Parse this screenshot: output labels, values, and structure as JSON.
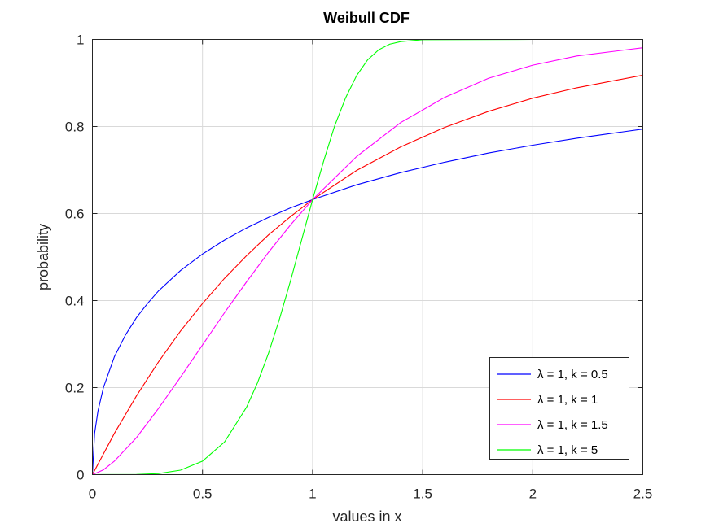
{
  "chart_data": {
    "type": "line",
    "title": "Weibull CDF",
    "xlabel": "values in x",
    "ylabel": "probability",
    "xlim": [
      0,
      2.5
    ],
    "ylim": [
      0,
      1
    ],
    "xticks": [
      0,
      0.5,
      1,
      1.5,
      2,
      2.5
    ],
    "xtick_labels": [
      "0",
      "0.5",
      "1",
      "1.5",
      "2",
      "2.5"
    ],
    "yticks": [
      0,
      0.2,
      0.4,
      0.6,
      0.8,
      1
    ],
    "ytick_labels": [
      "0",
      "0.2",
      "0.4",
      "0.6",
      "0.8",
      "1"
    ],
    "grid": true,
    "legend_position": "bottom-right",
    "series": [
      {
        "name": "λ = 1, k = 0.5",
        "color": "#0000ff",
        "x": [
          0,
          0.01,
          0.025,
          0.05,
          0.1,
          0.15,
          0.2,
          0.25,
          0.3,
          0.4,
          0.5,
          0.6,
          0.7,
          0.8,
          0.9,
          1.0,
          1.2,
          1.4,
          1.6,
          1.8,
          2.0,
          2.2,
          2.5
        ],
        "y": [
          0,
          0.095,
          0.146,
          0.2,
          0.271,
          0.321,
          0.361,
          0.393,
          0.422,
          0.469,
          0.507,
          0.539,
          0.567,
          0.591,
          0.613,
          0.632,
          0.666,
          0.694,
          0.718,
          0.739,
          0.757,
          0.773,
          0.794
        ]
      },
      {
        "name": "λ = 1, k = 1",
        "color": "#ff0000",
        "x": [
          0,
          0.1,
          0.2,
          0.3,
          0.4,
          0.5,
          0.6,
          0.7,
          0.8,
          0.9,
          1.0,
          1.2,
          1.4,
          1.6,
          1.8,
          2.0,
          2.2,
          2.5
        ],
        "y": [
          0,
          0.095,
          0.181,
          0.259,
          0.33,
          0.393,
          0.451,
          0.503,
          0.551,
          0.593,
          0.632,
          0.699,
          0.753,
          0.798,
          0.835,
          0.865,
          0.889,
          0.918
        ]
      },
      {
        "name": "λ = 1, k = 1.5",
        "color": "#ff00ff",
        "x": [
          0,
          0.05,
          0.1,
          0.2,
          0.3,
          0.4,
          0.5,
          0.6,
          0.7,
          0.8,
          0.9,
          1.0,
          1.2,
          1.4,
          1.6,
          1.8,
          2.0,
          2.2,
          2.5
        ],
        "y": [
          0,
          0.011,
          0.031,
          0.085,
          0.152,
          0.224,
          0.298,
          0.372,
          0.443,
          0.511,
          0.574,
          0.632,
          0.731,
          0.809,
          0.867,
          0.911,
          0.941,
          0.962,
          0.981
        ]
      },
      {
        "name": "λ = 1, k = 5",
        "color": "#00ff00",
        "x": [
          0,
          0.2,
          0.3,
          0.4,
          0.5,
          0.6,
          0.7,
          0.75,
          0.8,
          0.85,
          0.9,
          0.95,
          1.0,
          1.05,
          1.1,
          1.15,
          1.2,
          1.25,
          1.3,
          1.35,
          1.4,
          1.5,
          2.0,
          2.5
        ],
        "y": [
          0,
          0.0003,
          0.0024,
          0.0102,
          0.031,
          0.075,
          0.155,
          0.211,
          0.279,
          0.358,
          0.446,
          0.539,
          0.632,
          0.72,
          0.801,
          0.866,
          0.917,
          0.953,
          0.976,
          0.989,
          0.995,
          0.9995,
          1.0,
          1.0
        ]
      }
    ]
  }
}
